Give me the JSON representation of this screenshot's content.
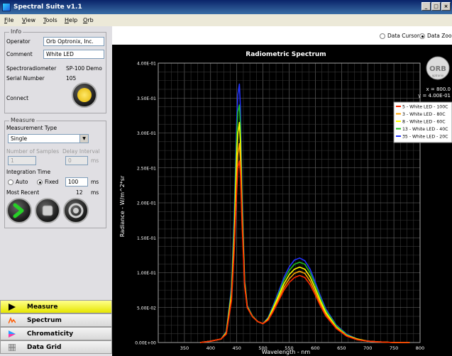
{
  "window": {
    "title": "Spectral Suite v1.1",
    "buttons": [
      "_",
      "□",
      "×"
    ]
  },
  "menu": [
    "File",
    "View",
    "Tools",
    "Help",
    "Orb"
  ],
  "info": {
    "title": "Info",
    "operator_label": "Operator",
    "operator_value": "Orb Optronix, Inc.",
    "comment_label": "Comment",
    "comment_value": "White LED",
    "spectro_label": "Spectroradiometer",
    "spectro_value": "SP-100 Demo",
    "serial_label": "Serial Number",
    "serial_value": "105",
    "connect_label": "Connect"
  },
  "measure": {
    "title": "Measure",
    "type_label": "Measurement Type",
    "type_value": "Single",
    "samples_label": "Number of Samples",
    "samples_value": "1",
    "delay_label": "Delay Interval",
    "delay_value": "0",
    "delay_unit": "ms",
    "integration_label": "Integration Time",
    "auto_label": "Auto",
    "fixed_label": "Fixed",
    "fixed_value": "100",
    "fixed_unit": "ms",
    "recent_label": "Most Recent",
    "recent_value": "12",
    "recent_unit": "ms"
  },
  "nav": [
    {
      "label": "Measure"
    },
    {
      "label": "Spectrum"
    },
    {
      "label": "Chromaticity"
    },
    {
      "label": "Data Grid"
    }
  ],
  "view_options": {
    "cursor": "Data Cursor",
    "zoom": "Data Zoom"
  },
  "cursor_readout": {
    "x": "x = 800.0",
    "y": "y = 4.00E-01"
  },
  "logo_text": {
    "main": "ORB",
    "sub": "optronix"
  },
  "colors": {
    "s1": "#ff2a00",
    "s2": "#ffa500",
    "s3": "#ffff00",
    "s4": "#1fbf1f",
    "s5": "#2233ff"
  },
  "chart_data": {
    "type": "line",
    "title": "Radiometric Spectrum",
    "xlabel": "Wavelength - nm",
    "ylabel": "Radiance - W/m^2*sr",
    "xlim": [
      300,
      800
    ],
    "ylim": [
      0,
      0.4
    ],
    "xticks": [
      "350",
      "400",
      "450",
      "500",
      "550",
      "600",
      "650",
      "700",
      "750",
      "800"
    ],
    "yticks": [
      "0.00E+00",
      "5.00E-02",
      "1.00E-01",
      "1.50E-01",
      "2.00E-01",
      "2.50E-01",
      "3.00E-01",
      "3.50E-01",
      "4.00E-01"
    ],
    "x": [
      380,
      400,
      420,
      430,
      440,
      445,
      450,
      452,
      455,
      457,
      460,
      465,
      470,
      480,
      490,
      500,
      510,
      520,
      530,
      540,
      550,
      560,
      570,
      580,
      590,
      600,
      610,
      620,
      640,
      660,
      680,
      700,
      720,
      750,
      780
    ],
    "series": [
      {
        "name": "5 - White LED - 100C",
        "color_key": "s1",
        "values": [
          0.0,
          0.002,
          0.005,
          0.012,
          0.06,
          0.13,
          0.22,
          0.25,
          0.26,
          0.24,
          0.17,
          0.08,
          0.05,
          0.037,
          0.03,
          0.027,
          0.032,
          0.045,
          0.06,
          0.075,
          0.086,
          0.093,
          0.096,
          0.093,
          0.083,
          0.068,
          0.052,
          0.038,
          0.02,
          0.009,
          0.004,
          0.002,
          0.001,
          0.0,
          0.0
        ]
      },
      {
        "name": "3 - White LED - 80C",
        "color_key": "s2",
        "values": [
          0.0,
          0.002,
          0.005,
          0.013,
          0.065,
          0.14,
          0.24,
          0.27,
          0.285,
          0.26,
          0.18,
          0.082,
          0.05,
          0.037,
          0.03,
          0.027,
          0.033,
          0.047,
          0.063,
          0.079,
          0.091,
          0.099,
          0.102,
          0.099,
          0.088,
          0.072,
          0.055,
          0.04,
          0.021,
          0.01,
          0.004,
          0.002,
          0.001,
          0.0,
          0.0
        ]
      },
      {
        "name": "8 - White LED - 60C",
        "color_key": "s3",
        "values": [
          0.0,
          0.002,
          0.005,
          0.014,
          0.07,
          0.15,
          0.27,
          0.3,
          0.315,
          0.285,
          0.19,
          0.085,
          0.051,
          0.037,
          0.03,
          0.027,
          0.034,
          0.05,
          0.067,
          0.084,
          0.097,
          0.105,
          0.108,
          0.105,
          0.094,
          0.077,
          0.059,
          0.043,
          0.022,
          0.01,
          0.005,
          0.002,
          0.001,
          0.0,
          0.0
        ]
      },
      {
        "name": "13 - White LED - 40C",
        "color_key": "s4",
        "values": [
          0.0,
          0.002,
          0.005,
          0.015,
          0.075,
          0.165,
          0.3,
          0.33,
          0.34,
          0.31,
          0.2,
          0.088,
          0.052,
          0.038,
          0.03,
          0.027,
          0.035,
          0.052,
          0.07,
          0.089,
          0.103,
          0.112,
          0.115,
          0.112,
          0.1,
          0.082,
          0.063,
          0.046,
          0.024,
          0.011,
          0.005,
          0.002,
          0.001,
          0.0,
          0.0
        ]
      },
      {
        "name": "35 - White LED - 20C",
        "color_key": "s5",
        "values": [
          0.0,
          0.002,
          0.005,
          0.016,
          0.08,
          0.18,
          0.32,
          0.355,
          0.37,
          0.335,
          0.21,
          0.09,
          0.053,
          0.038,
          0.03,
          0.027,
          0.036,
          0.054,
          0.073,
          0.093,
          0.108,
          0.118,
          0.121,
          0.117,
          0.105,
          0.086,
          0.066,
          0.048,
          0.025,
          0.012,
          0.005,
          0.002,
          0.001,
          0.0,
          0.0
        ]
      }
    ],
    "grid": true,
    "legend": "top-right"
  }
}
